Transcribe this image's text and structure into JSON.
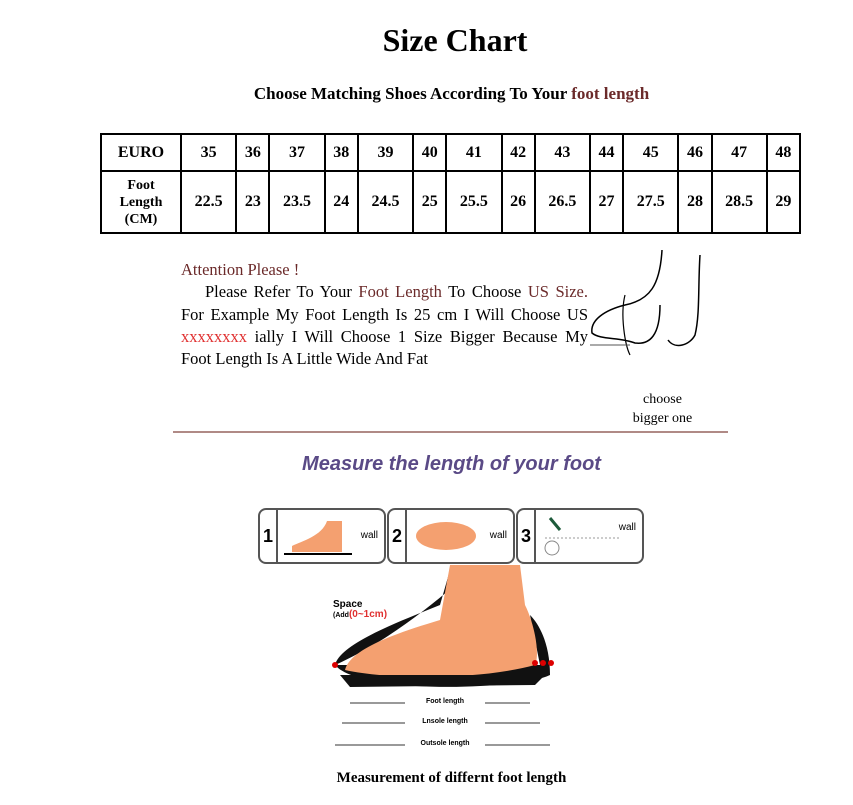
{
  "title": "Size Chart",
  "subtitle": {
    "text": "Choose Matching Shoes According To Your ",
    "highlight": "foot length"
  },
  "table": {
    "row1_header": "EURO",
    "euro": [
      "35",
      "36",
      "37",
      "38",
      "39",
      "40",
      "41",
      "42",
      "43",
      "44",
      "45",
      "46",
      "47",
      "48"
    ],
    "row2_header": [
      "Foot",
      "Length",
      "(CM)"
    ],
    "cm": [
      "22.5",
      "23",
      "23.5",
      "24",
      "24.5",
      "25",
      "25.5",
      "26",
      "26.5",
      "27",
      "27.5",
      "28",
      "28.5",
      "29"
    ]
  },
  "note": {
    "heading": "Attention Please !",
    "p1": "Please Refer To Your ",
    "foot_length": "Foot Length",
    "p2": " To Choose ",
    "us_size": "US Size.",
    "p3": " For Example My Foot Length Is 25 cm I Will Choose US ",
    "redacted": "xxxxxxxx",
    "p4": " ially I Will Choose 1 Size Bigger Because My Foot Length Is A Little Wide And Fat"
  },
  "choose_bigger": [
    "choose",
    "bigger one"
  ],
  "measure_title": "Measure the length of your foot",
  "steps": [
    {
      "num": "1",
      "wall": "wall"
    },
    {
      "num": "2",
      "wall": "wall"
    },
    {
      "num": "3",
      "wall": "wall"
    }
  ],
  "diagram": {
    "space": "Space",
    "add": "(Add",
    "add_range": "(0~1cm)",
    "foot_length": "Foot length",
    "insole_length": "Lnsole length",
    "outsole_length": "Outsole length"
  },
  "caption": "Measurement of differnt foot length",
  "colors": {
    "accent_brown": "#6b2a2a",
    "red": "#e03030",
    "measure_title": "#5a4a86",
    "skin": "#f4a070"
  }
}
